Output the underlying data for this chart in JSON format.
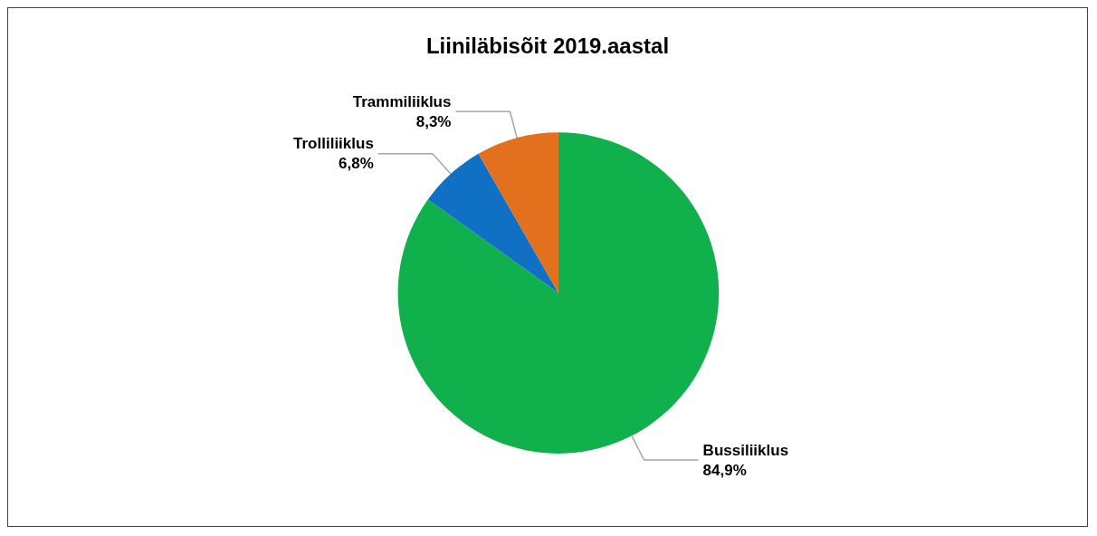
{
  "chart_data": {
    "type": "pie",
    "title": "Liiniläbisõit 2019.aastal",
    "categories": [
      "Bussiliiklus",
      "Trolliliiklus",
      "Trammiliiklus"
    ],
    "values": [
      84.9,
      6.8,
      8.3
    ],
    "value_labels": [
      "84,9%",
      "6,8%",
      "8,3%"
    ],
    "colors": [
      "#10b04c",
      "#1070c4",
      "#e2701c"
    ],
    "legend": false
  }
}
